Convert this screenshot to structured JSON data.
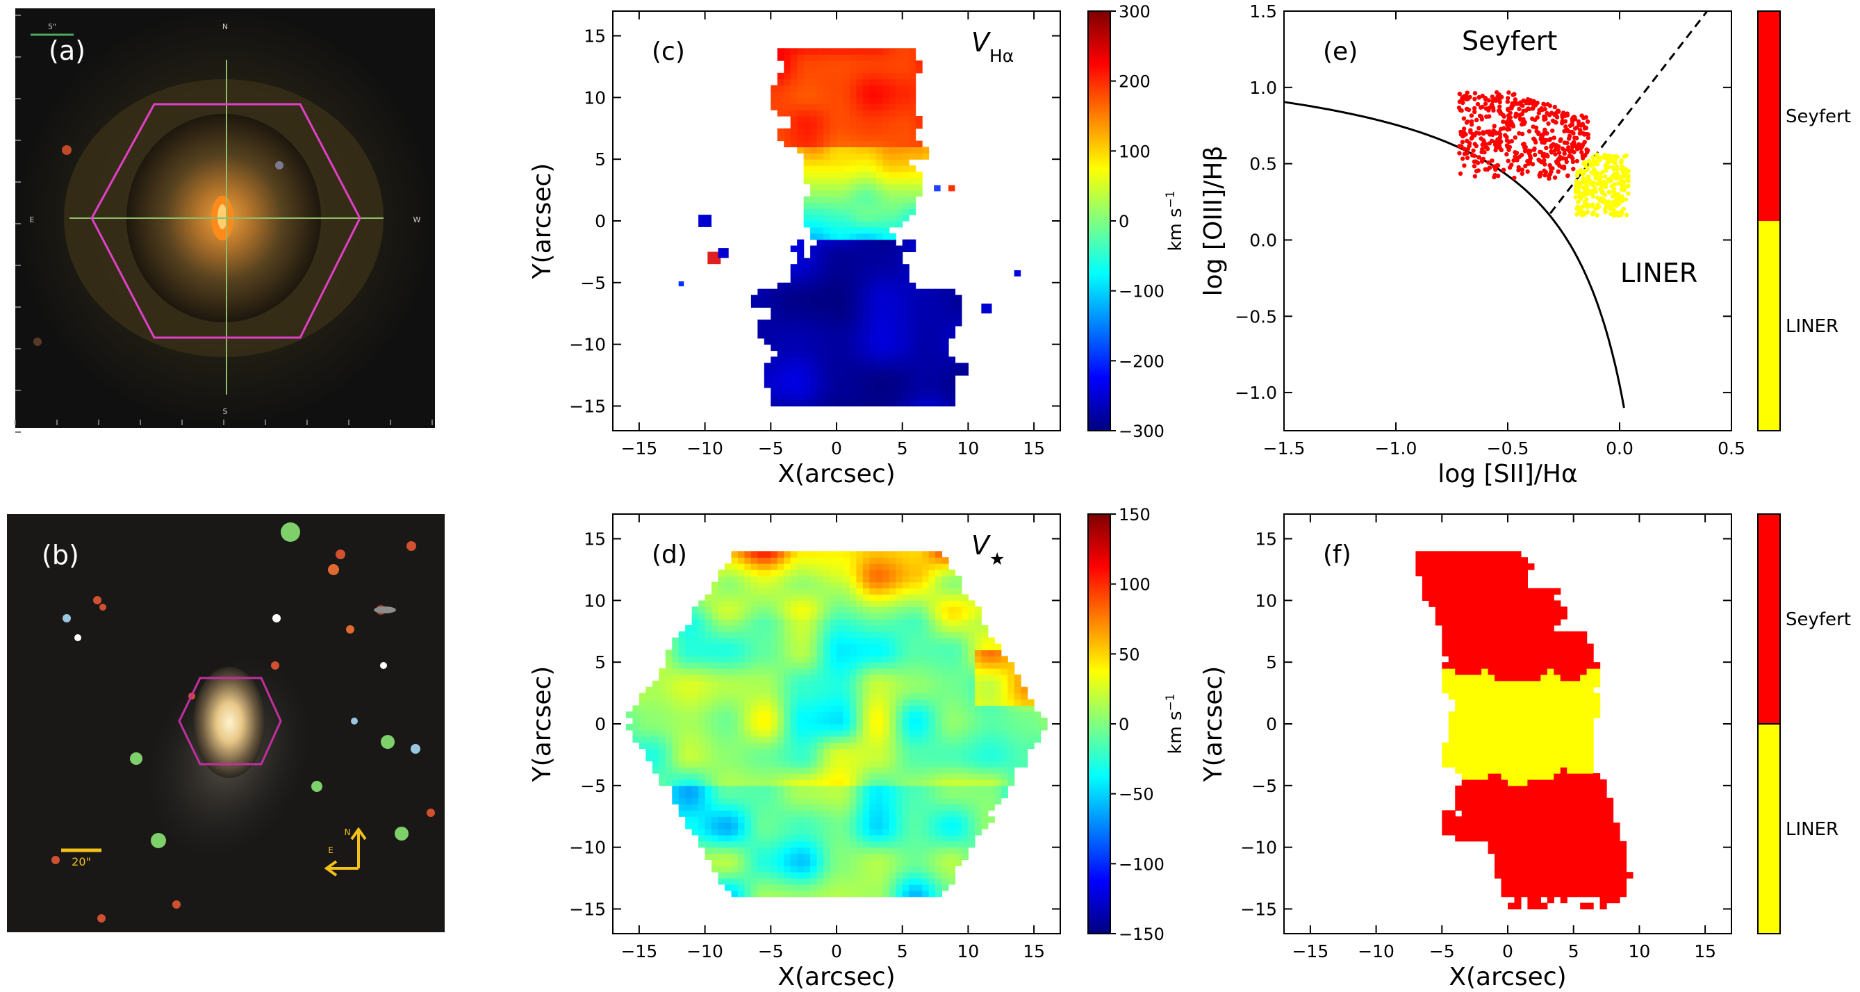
{
  "panels": {
    "a": {
      "label": "(a)",
      "scale_label": "5\"",
      "compass": {
        "n": "N",
        "s": "S",
        "e": "E",
        "w": "W"
      },
      "hexagon_color": "#e040c8",
      "crosshair_color": "#8fbf6a"
    },
    "b": {
      "label": "(b)",
      "scale_label": "20\"",
      "arrow_n": "N",
      "arrow_e": "E",
      "hexagon_color": "#c0309e",
      "annotation_color": "#f2c21b"
    },
    "c": {
      "label": "(c)",
      "map_label": "V",
      "map_label_sub": "Hα",
      "colorbar_unit": "km s",
      "colorbar_unit_sup": "−1"
    },
    "d": {
      "label": "(d)",
      "map_label": "V",
      "map_label_sub": "★",
      "colorbar_unit": "km s",
      "colorbar_unit_sup": "−1"
    },
    "e": {
      "label": "(e)",
      "region_seyfert": "Seyfert",
      "region_liner": "LINER",
      "legend_top": "Seyfert",
      "legend_bottom": "LINER"
    },
    "f": {
      "label": "(f)",
      "legend_top": "Seyfert",
      "legend_bottom": "LINER"
    }
  },
  "colors": {
    "seyfert": "#ff0000",
    "liner": "#ffff00"
  },
  "chart_data": [
    {
      "id": "c",
      "type": "heatmap",
      "xlabel": "X(arcsec)",
      "ylabel": "Y(arcsec)",
      "xlim": [
        -17,
        17
      ],
      "ylim": [
        -17,
        17
      ],
      "xticks": [
        "−15",
        "−10",
        "−5",
        "0",
        "5",
        "10",
        "15"
      ],
      "yticks": [
        "−15",
        "−10",
        "−5",
        "0",
        "5",
        "10",
        "15"
      ],
      "colorbar_range": [
        -300,
        300
      ],
      "colorbar_ticks": [
        "−300",
        "−200",
        "−100",
        "0",
        "100",
        "200",
        "300"
      ],
      "colormap": "jet",
      "description_values": {
        "north_mean": 200,
        "south_mean": -270
      }
    },
    {
      "id": "d",
      "type": "heatmap",
      "xlabel": "X(arcsec)",
      "ylabel": "Y(arcsec)",
      "xlim": [
        -17,
        17
      ],
      "ylim": [
        -17,
        17
      ],
      "xticks": [
        "−15",
        "−10",
        "−5",
        "0",
        "5",
        "10",
        "15"
      ],
      "yticks": [
        "−15",
        "−10",
        "−5",
        "0",
        "5",
        "10",
        "15"
      ],
      "colorbar_range": [
        -150,
        150
      ],
      "colorbar_ticks": [
        "−150",
        "−100",
        "−50",
        "0",
        "50",
        "100",
        "150"
      ],
      "colormap": "jet"
    },
    {
      "id": "e",
      "type": "scatter",
      "xlabel": "log [SII]/Hα",
      "ylabel": "log [OIII]/Hβ",
      "xlim": [
        -1.5,
        0.5
      ],
      "ylim": [
        -1.25,
        1.5
      ],
      "xticks": [
        "−1.5",
        "−1.0",
        "−0.5",
        "0.0",
        "0.5"
      ],
      "yticks": [
        "−1.0",
        "−0.5",
        "0.0",
        "0.5",
        "1.0",
        "1.5"
      ],
      "series": [
        {
          "name": "Seyfert",
          "color": "#ff0000",
          "x_range": [
            -0.7,
            -0.15
          ],
          "y_range": [
            0.4,
            1.0
          ]
        },
        {
          "name": "LINER",
          "color": "#ffff00",
          "x_range": [
            -0.2,
            0.05
          ],
          "y_range": [
            0.15,
            0.55
          ]
        }
      ],
      "curves": [
        {
          "kind": "Kewley maximum starburst",
          "style": "solid"
        },
        {
          "kind": "Seyfert/LINER divider",
          "style": "dashed"
        }
      ]
    },
    {
      "id": "f",
      "type": "heatmap",
      "xlabel": "X(arcsec)",
      "ylabel": "Y(arcsec)",
      "xlim": [
        -17,
        17
      ],
      "ylim": [
        -17,
        17
      ],
      "xticks": [
        "−15",
        "−10",
        "−5",
        "0",
        "5",
        "10",
        "15"
      ],
      "yticks": [
        "−15",
        "−10",
        "−5",
        "0",
        "5",
        "10",
        "15"
      ],
      "categories": [
        "Seyfert",
        "LINER"
      ]
    }
  ]
}
